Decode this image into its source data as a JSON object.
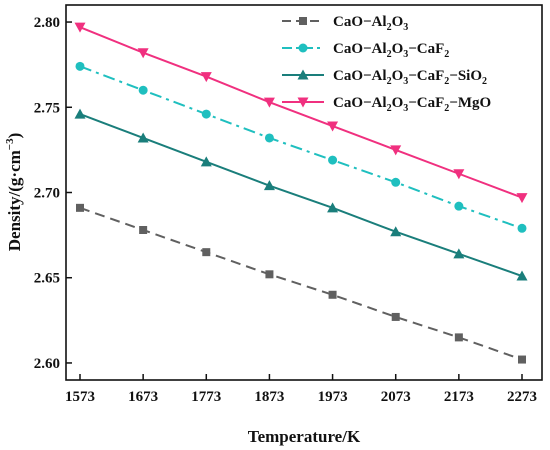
{
  "chart_data": {
    "type": "line",
    "title": "",
    "xlabel": "Temperature/K",
    "ylabel": {
      "main": "Density/(g·cm",
      "sup": "−3",
      "close": ")"
    },
    "x": [
      1573,
      1673,
      1773,
      1873,
      1973,
      2073,
      2173,
      2273
    ],
    "x_tick_labels": [
      "1573",
      "1673",
      "1773",
      "1873",
      "1973",
      "2073",
      "2173",
      "2273"
    ],
    "xlim": [
      1573,
      2273
    ],
    "ylim": [
      2.59,
      2.81
    ],
    "y_ticks": [
      2.6,
      2.65,
      2.7,
      2.75,
      2.8
    ],
    "y_tick_labels": [
      "2.60",
      "2.65",
      "2.70",
      "2.75",
      "2.80"
    ],
    "legend_position": "top-right",
    "grid": false,
    "series": [
      {
        "name_parts": [
          [
            "CaO−Al",
            ""
          ],
          [
            "2",
            "sub"
          ],
          [
            "O",
            ""
          ],
          [
            "3",
            "sub"
          ]
        ],
        "color": "#606060",
        "marker": "square",
        "line_style": "dashed",
        "values": [
          2.691,
          2.678,
          2.665,
          2.652,
          2.64,
          2.627,
          2.615,
          2.602
        ]
      },
      {
        "name_parts": [
          [
            "CaO−Al",
            ""
          ],
          [
            "2",
            "sub"
          ],
          [
            "O",
            ""
          ],
          [
            "3",
            "sub"
          ],
          [
            "−CaF",
            ""
          ],
          [
            "2",
            "sub"
          ]
        ],
        "color": "#1FBFBF",
        "marker": "circle",
        "line_style": "dashdot",
        "values": [
          2.774,
          2.76,
          2.746,
          2.732,
          2.719,
          2.706,
          2.692,
          2.679
        ]
      },
      {
        "name_parts": [
          [
            "CaO−Al",
            ""
          ],
          [
            "2",
            "sub"
          ],
          [
            "O",
            ""
          ],
          [
            "3",
            "sub"
          ],
          [
            "−CaF",
            ""
          ],
          [
            "2",
            "sub"
          ],
          [
            "−SiO",
            ""
          ],
          [
            "2",
            "sub"
          ]
        ],
        "color": "#1A7E7B",
        "marker": "triangle-up",
        "line_style": "solid",
        "values": [
          2.746,
          2.732,
          2.718,
          2.704,
          2.691,
          2.677,
          2.664,
          2.651
        ]
      },
      {
        "name_parts": [
          [
            "CaO−Al",
            ""
          ],
          [
            "2",
            "sub"
          ],
          [
            "O",
            ""
          ],
          [
            "3",
            "sub"
          ],
          [
            "−CaF",
            ""
          ],
          [
            "2",
            "sub"
          ],
          [
            "−MgO",
            ""
          ]
        ],
        "color": "#F0307F",
        "marker": "triangle-down",
        "line_style": "solid",
        "values": [
          2.797,
          2.782,
          2.768,
          2.753,
          2.739,
          2.725,
          2.711,
          2.697
        ]
      }
    ]
  }
}
